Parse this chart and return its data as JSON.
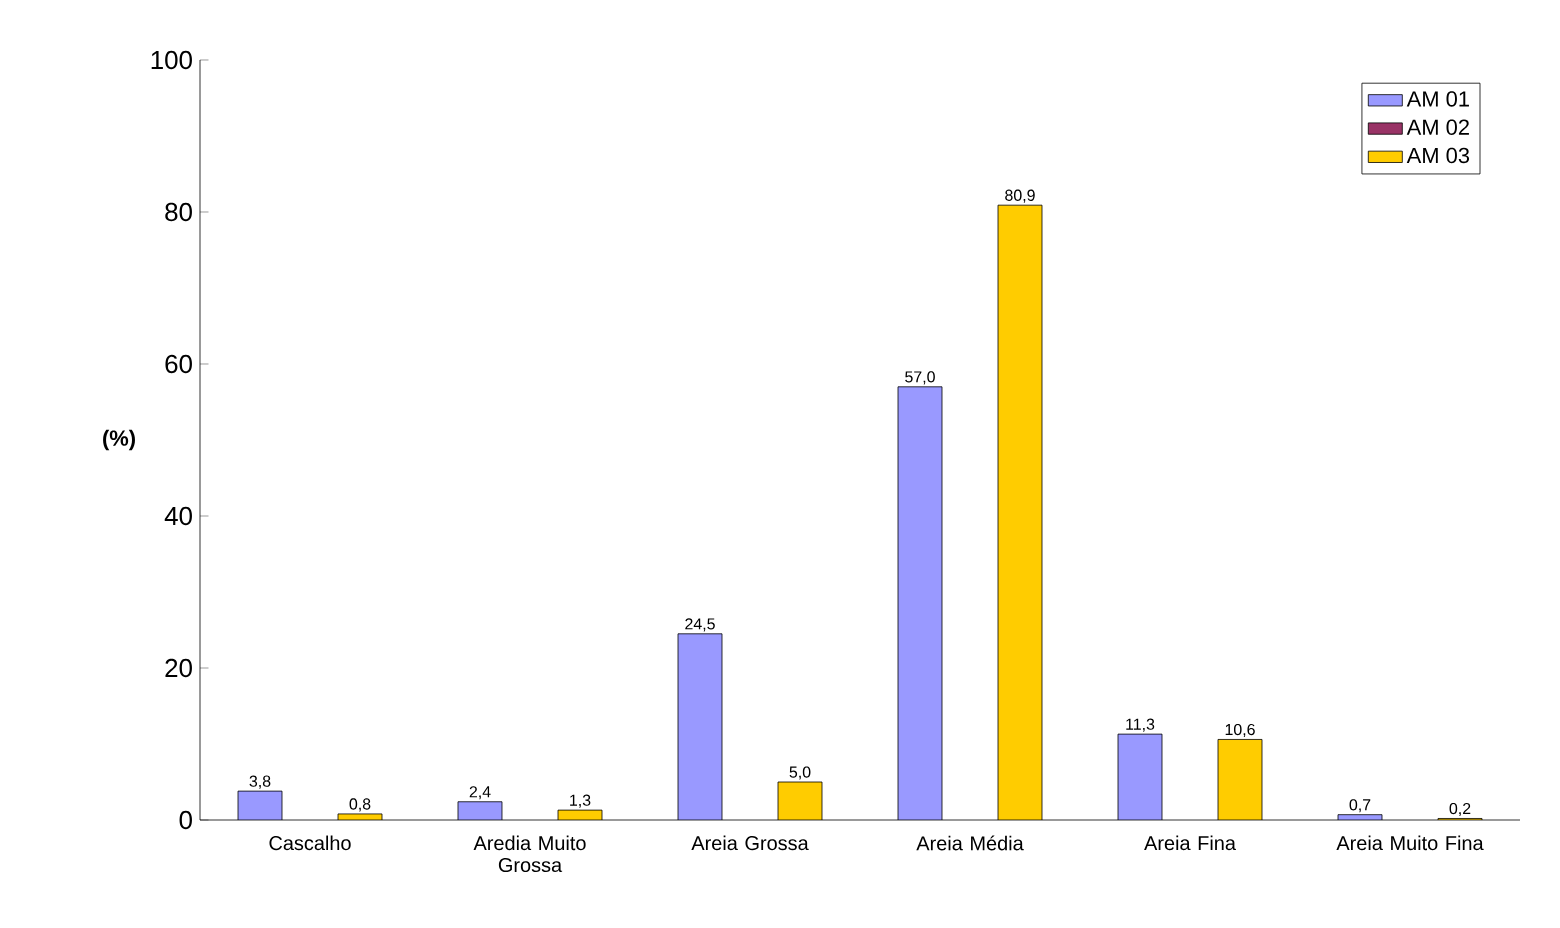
{
  "chart_data": {
    "type": "bar",
    "ylabel": "(%)",
    "categories": [
      "Cascalho",
      "Aredia Muito Grossa",
      "Areia Grossa",
      "Areia Média",
      "Areia Fina",
      "Areia Muito Fina"
    ],
    "series": [
      {
        "name": "AM 01",
        "color": "#9999ff",
        "values": [
          3.8,
          2.4,
          24.5,
          57.0,
          11.3,
          0.7
        ],
        "value_labels": [
          "3,8",
          "2,4",
          "24,5",
          "57,0",
          "11,3",
          "0,7"
        ]
      },
      {
        "name": "AM 02",
        "color": "#993366",
        "values": [
          null,
          null,
          null,
          null,
          null,
          null
        ]
      },
      {
        "name": "AM 03",
        "color": "#ffcc00",
        "values": [
          0.8,
          1.3,
          5.0,
          80.9,
          10.6,
          0.2
        ],
        "value_labels": [
          "0,8",
          "1,3",
          "5,0",
          "80,9",
          "10,6",
          "0,2"
        ]
      }
    ],
    "ylim": [
      0,
      100
    ],
    "yticks": [
      0,
      20,
      40,
      60,
      80,
      100
    ],
    "legend": "top right",
    "grid": false
  }
}
